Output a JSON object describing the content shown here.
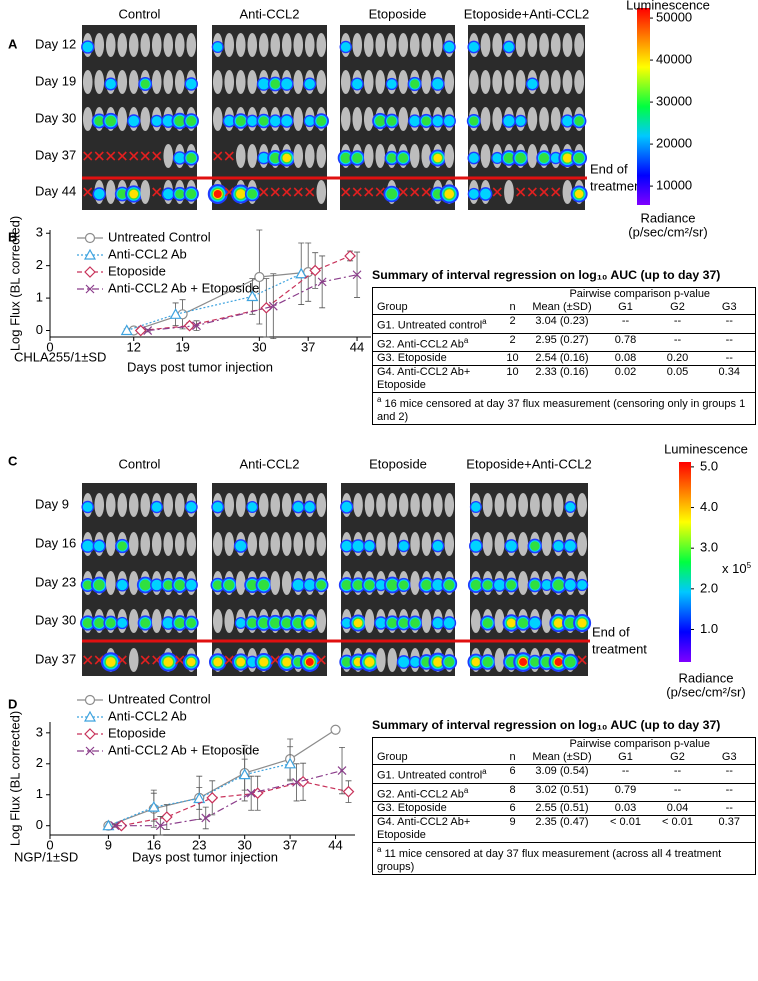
{
  "panels": [
    {
      "letter": "A",
      "groups": [
        "Control",
        "Anti-CCL2",
        "Etoposide",
        "Etoposide+Anti-CCL2"
      ],
      "days": [
        "Day 12",
        "Day 19",
        "Day 30",
        "Day 37",
        "Day 44"
      ],
      "end_note": [
        "End of",
        "treatment"
      ],
      "colorbar": {
        "title": "Luminescence",
        "lim": [
          5500,
          52400
        ],
        "ticks": [
          10000,
          20000,
          30000,
          40000,
          50000
        ],
        "label": "Radiance",
        "units": "(p/sec/cm²/sr)"
      }
    },
    {
      "letter": "C",
      "groups": [
        "Control",
        "Anti-CCL2",
        "Etoposide",
        "Etoposide+Anti-CCL2"
      ],
      "days": [
        "Day 9",
        "Day 16",
        "Day 23",
        "Day 30",
        "Day 37"
      ],
      "end_note": [
        "End of",
        "treatment"
      ],
      "colorbar": {
        "title": "Luminescence",
        "lim": [
          0.2,
          5.12
        ],
        "ticks": [
          {
            "value": 1,
            "label": "1.0"
          },
          {
            "value": 2,
            "label": "2.0"
          },
          {
            "value": 3,
            "label": "3.0"
          },
          {
            "value": 4,
            "label": "4.0"
          },
          {
            "value": 5,
            "label": "5.0"
          }
        ],
        "multiplier": "x 10",
        "multiplier_sup": "5",
        "label": "Radiance",
        "units": "(p/sec/cm²/sr)"
      }
    }
  ],
  "chart_data": [
    {
      "letter": "B",
      "type": "line",
      "ylabel": "Log Flux (BL corrected)",
      "xlabel": "Days post tumor injection",
      "note": "CHLA255/1±SD",
      "xlim": [
        0,
        46
      ],
      "xticks": [
        0,
        12,
        19,
        30,
        37,
        44
      ],
      "ylim": [
        -0.2,
        3.1
      ],
      "yticks": [
        0,
        1,
        2,
        3
      ],
      "series": [
        {
          "name": "Untreated Control",
          "color": "#8c8c8c",
          "marker": "circle",
          "dash": "solid",
          "x": [
            12,
            19,
            30,
            37
          ],
          "values": [
            0,
            0.5,
            1.65,
            1.8
          ],
          "errors": [
            0.05,
            0.45,
            1.45,
            0.9
          ]
        },
        {
          "name": "Anti-CCL2 Ab",
          "color": "#3ea3df",
          "marker": "triangle",
          "dash": "dotted",
          "x": [
            11,
            18,
            29,
            36
          ],
          "values": [
            0,
            0.5,
            1.05,
            1.75
          ],
          "errors": [
            0.05,
            0.35,
            0.55,
            0.95
          ]
        },
        {
          "name": "Etoposide",
          "color": "#c8325a",
          "marker": "diamond",
          "dash": "dashed",
          "x": [
            13,
            20,
            31,
            38,
            43
          ],
          "values": [
            0,
            0.15,
            0.7,
            1.85,
            2.3
          ],
          "errors": [
            0.04,
            0.1,
            0.9,
            0.55,
            0.15
          ]
        },
        {
          "name": "Anti-CCL2 Ab + Etoposide",
          "color": "#8b3d8b",
          "marker": "x",
          "dash": "dashdot",
          "x": [
            14,
            21,
            32,
            39,
            44
          ],
          "values": [
            0,
            0.15,
            0.75,
            1.5,
            1.72
          ],
          "errors": [
            0.04,
            0.15,
            1.0,
            0.8,
            0.7
          ]
        }
      ]
    },
    {
      "letter": "D",
      "type": "line",
      "ylabel": "Log Flux (BL corrected)",
      "xlabel": "Days post tumor injection",
      "note": "NGP/1±SD",
      "xlim": [
        0,
        47
      ],
      "xticks": [
        0,
        9,
        16,
        23,
        30,
        37,
        44
      ],
      "ylim": [
        -0.3,
        3.35
      ],
      "yticks": [
        0,
        1,
        2,
        3
      ],
      "series": [
        {
          "name": "Untreated Control",
          "color": "#8c8c8c",
          "marker": "circle",
          "dash": "solid",
          "x": [
            9,
            16,
            23,
            30,
            37,
            44
          ],
          "values": [
            0,
            0.55,
            0.9,
            1.7,
            2.15,
            3.1
          ],
          "errors": [
            0.05,
            0.6,
            0.7,
            0.9,
            0.65,
            null
          ]
        },
        {
          "name": "Anti-CCL2 Ab",
          "color": "#3ea3df",
          "marker": "triangle",
          "dash": "dotted",
          "x": [
            9,
            16,
            23,
            30,
            37
          ],
          "values": [
            0,
            0.6,
            0.88,
            1.65,
            2.0
          ],
          "errors": [
            0.03,
            0.45,
            0.35,
            0.5,
            0.55
          ]
        },
        {
          "name": "Etoposide",
          "color": "#c8325a",
          "marker": "diamond",
          "dash": "dashed",
          "x": [
            11,
            18,
            25,
            32,
            39,
            46
          ],
          "values": [
            0,
            0.28,
            0.9,
            1.05,
            1.42,
            1.1
          ],
          "errors": [
            0.05,
            0.4,
            0.55,
            0.55,
            0.6,
            0.35
          ]
        },
        {
          "name": "Anti-CCL2 Ab + Etoposide",
          "color": "#8b3d8b",
          "marker": "x",
          "dash": "dashdot",
          "x": [
            10,
            17,
            24,
            31,
            38,
            45
          ],
          "values": [
            0,
            0,
            0.25,
            1.05,
            1.4,
            1.78
          ],
          "errors": [
            0.05,
            0.3,
            0.35,
            0.55,
            0.6,
            0.75
          ]
        }
      ]
    }
  ],
  "tables": [
    {
      "title": "Summary of interval regression on log₁₀ AUC (up to day 37)",
      "span_header": "Pairwise comparison p-value",
      "columns": [
        "Group",
        "n",
        "Mean (±SD)",
        "G1",
        "G2",
        "G3"
      ],
      "rows": [
        {
          "cells": [
            "G1. Untreated control",
            "2",
            "3.04 (0.23)",
            "--",
            "--",
            "--"
          ],
          "sup": "a"
        },
        {
          "cells": [
            "G2. Anti-CCL2 Ab",
            "2",
            "2.95 (0.27)",
            "0.78",
            "--",
            "--"
          ],
          "sup": "a"
        },
        {
          "cells": [
            "G3. Etoposide",
            "10",
            "2.54 (0.16)",
            "0.08",
            "0.20",
            "--"
          ]
        },
        {
          "cells": [
            "G4. Anti-CCL2 Ab+ Etoposide",
            "10",
            "2.33 (0.16)",
            "0.02",
            "0.05",
            "0.34"
          ]
        }
      ],
      "footnote_sup": "a",
      "footnote": "16 mice censored at day 37 flux measurement (censoring only in groups 1 and 2)"
    },
    {
      "title": "Summary of interval regression on log₁₀ AUC (up to day 37)",
      "span_header": "Pairwise comparison p-value",
      "columns": [
        "Group",
        "n",
        "Mean (±SD)",
        "G1",
        "G2",
        "G3"
      ],
      "rows": [
        {
          "cells": [
            "G1. Untreated control",
            "6",
            "3.09 (0.54)",
            "--",
            "--",
            "--"
          ],
          "sup": "a"
        },
        {
          "cells": [
            "G2. Anti-CCL2 Ab",
            "8",
            "3.02 (0.51)",
            "0.79",
            "--",
            "--"
          ],
          "sup": "a"
        },
        {
          "cells": [
            "G3. Etoposide",
            "6",
            "2.55 (0.51)",
            "0.03",
            "0.04",
            "--"
          ]
        },
        {
          "cells": [
            "G4. Anti-CCL2 Ab+ Etoposide",
            "9",
            "2.35 (0.47)",
            "< 0.01",
            "< 0.01",
            "0.37"
          ]
        }
      ],
      "footnote_sup": "a",
      "footnote": "11 mice censored at day 37 flux measurement (across all 4 treatment groups)"
    }
  ]
}
